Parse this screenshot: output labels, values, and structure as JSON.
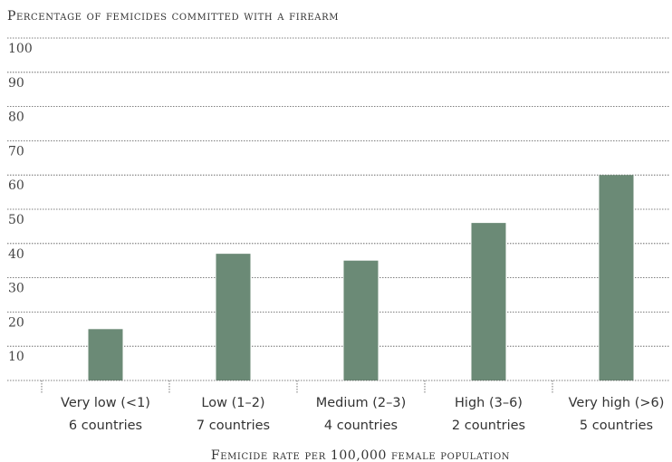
{
  "chart_data": {
    "type": "bar",
    "title": "",
    "ylabel": "Percentage of femicides committed with a firearm",
    "xlabel": "Femicide rate per 100,000 female population",
    "ylim": [
      0,
      100
    ],
    "yticks": [
      10,
      20,
      30,
      40,
      50,
      60,
      70,
      80,
      90,
      100
    ],
    "grid": true,
    "bar_color": "#6b8a76",
    "categories": [
      "Very low (<1)",
      "Low (1–2)",
      "Medium (2–3)",
      "High (3–6)",
      "Very high (>6)"
    ],
    "sublabels": [
      "6 countries",
      "7 countries",
      "4 countries",
      "2 countries",
      "5 countries"
    ],
    "values": [
      15,
      37,
      35,
      46,
      60
    ]
  }
}
